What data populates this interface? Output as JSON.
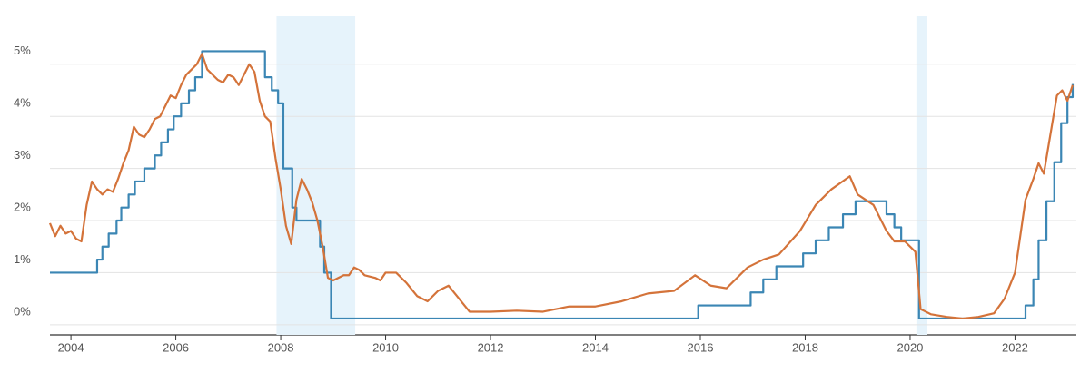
{
  "chart_data": {
    "type": "line",
    "xlim": [
      2003.6,
      2023.17
    ],
    "ylim": [
      -0.16,
      5.92
    ],
    "xticks": [
      2004,
      2006,
      2008,
      2010,
      2012,
      2014,
      2016,
      2018,
      2020,
      2022
    ],
    "yticks": [
      {
        "value": 0,
        "label": "0%"
      },
      {
        "value": 1,
        "label": "1%"
      },
      {
        "value": 2,
        "label": "2%"
      },
      {
        "value": 3,
        "label": "3%"
      },
      {
        "value": 4,
        "label": "4%"
      },
      {
        "value": 5,
        "label": "5%"
      }
    ],
    "grid": true,
    "shaded_ranges": [
      [
        2007.92,
        2009.42
      ],
      [
        2020.12,
        2020.33
      ]
    ],
    "shade_color": "#e6f3fb",
    "series": [
      {
        "color": "#3b86b4",
        "step": true,
        "x": [
          2003.6,
          2004.5,
          2004.6,
          2004.72,
          2004.87,
          2004.96,
          2005.1,
          2005.22,
          2005.4,
          2005.6,
          2005.72,
          2005.85,
          2005.96,
          2006.1,
          2006.25,
          2006.37,
          2006.5,
          2007.7,
          2007.83,
          2007.95,
          2008.05,
          2008.22,
          2008.3,
          2008.75,
          2008.83,
          2008.96,
          2015.96,
          2016.96,
          2017.2,
          2017.45,
          2017.96,
          2018.2,
          2018.45,
          2018.72,
          2018.96,
          2019.55,
          2019.7,
          2019.83,
          2020.17,
          2022.2,
          2022.35,
          2022.45,
          2022.6,
          2022.75,
          2022.88,
          2023.0,
          2023.1
        ],
        "values": [
          1.0,
          1.25,
          1.5,
          1.75,
          2.0,
          2.25,
          2.5,
          2.75,
          3.0,
          3.25,
          3.5,
          3.75,
          4.0,
          4.25,
          4.5,
          4.75,
          5.25,
          4.75,
          4.5,
          4.25,
          3.0,
          2.25,
          2.0,
          1.5,
          1.0,
          0.12,
          0.37,
          0.62,
          0.87,
          1.12,
          1.37,
          1.62,
          1.87,
          2.12,
          2.37,
          2.12,
          1.87,
          1.62,
          0.12,
          0.37,
          0.87,
          1.62,
          2.37,
          3.12,
          3.87,
          4.37,
          4.62
        ]
      },
      {
        "color": "#d4733a",
        "step": false,
        "x": [
          2003.6,
          2003.7,
          2003.8,
          2003.9,
          2004.0,
          2004.1,
          2004.2,
          2004.3,
          2004.4,
          2004.5,
          2004.6,
          2004.7,
          2004.8,
          2004.9,
          2005.0,
          2005.1,
          2005.2,
          2005.3,
          2005.4,
          2005.5,
          2005.6,
          2005.7,
          2005.8,
          2005.9,
          2006.0,
          2006.1,
          2006.2,
          2006.3,
          2006.4,
          2006.5,
          2006.6,
          2006.7,
          2006.8,
          2006.9,
          2007.0,
          2007.1,
          2007.2,
          2007.3,
          2007.4,
          2007.5,
          2007.6,
          2007.7,
          2007.8,
          2007.9,
          2008.0,
          2008.1,
          2008.2,
          2008.3,
          2008.4,
          2008.5,
          2008.6,
          2008.7,
          2008.8,
          2008.9,
          2009.0,
          2009.1,
          2009.2,
          2009.3,
          2009.4,
          2009.5,
          2009.6,
          2009.8,
          2009.9,
          2010.0,
          2010.2,
          2010.4,
          2010.6,
          2010.8,
          2011.0,
          2011.2,
          2011.4,
          2011.6,
          2011.8,
          2012.0,
          2012.5,
          2013.0,
          2013.5,
          2014.0,
          2014.5,
          2015.0,
          2015.5,
          2015.9,
          2016.2,
          2016.5,
          2016.9,
          2017.2,
          2017.5,
          2017.9,
          2018.2,
          2018.5,
          2018.85,
          2019.0,
          2019.3,
          2019.55,
          2019.7,
          2019.9,
          2020.1,
          2020.2,
          2020.4,
          2020.7,
          2021.0,
          2021.3,
          2021.6,
          2021.8,
          2022.0,
          2022.2,
          2022.35,
          2022.45,
          2022.55,
          2022.7,
          2022.8,
          2022.9,
          2023.0,
          2023.1
        ],
        "values": [
          1.95,
          1.7,
          1.9,
          1.75,
          1.8,
          1.65,
          1.6,
          2.3,
          2.75,
          2.6,
          2.5,
          2.6,
          2.55,
          2.8,
          3.1,
          3.35,
          3.8,
          3.65,
          3.6,
          3.75,
          3.95,
          4.0,
          4.2,
          4.4,
          4.35,
          4.6,
          4.8,
          4.9,
          5.0,
          5.2,
          4.9,
          4.8,
          4.7,
          4.65,
          4.8,
          4.75,
          4.6,
          4.8,
          5.0,
          4.85,
          4.3,
          4.0,
          3.9,
          3.2,
          2.6,
          1.9,
          1.55,
          2.4,
          2.8,
          2.6,
          2.35,
          2.0,
          1.5,
          0.9,
          0.85,
          0.9,
          0.95,
          0.95,
          1.1,
          1.05,
          0.95,
          0.9,
          0.85,
          1.0,
          1.0,
          0.8,
          0.55,
          0.45,
          0.65,
          0.75,
          0.5,
          0.25,
          0.25,
          0.25,
          0.27,
          0.25,
          0.35,
          0.35,
          0.45,
          0.6,
          0.65,
          0.95,
          0.75,
          0.7,
          1.1,
          1.25,
          1.35,
          1.8,
          2.3,
          2.6,
          2.85,
          2.5,
          2.3,
          1.8,
          1.6,
          1.6,
          1.4,
          0.3,
          0.2,
          0.15,
          0.12,
          0.15,
          0.22,
          0.5,
          1.0,
          2.4,
          2.8,
          3.1,
          2.9,
          3.8,
          4.4,
          4.5,
          4.3,
          4.6
        ]
      }
    ]
  }
}
